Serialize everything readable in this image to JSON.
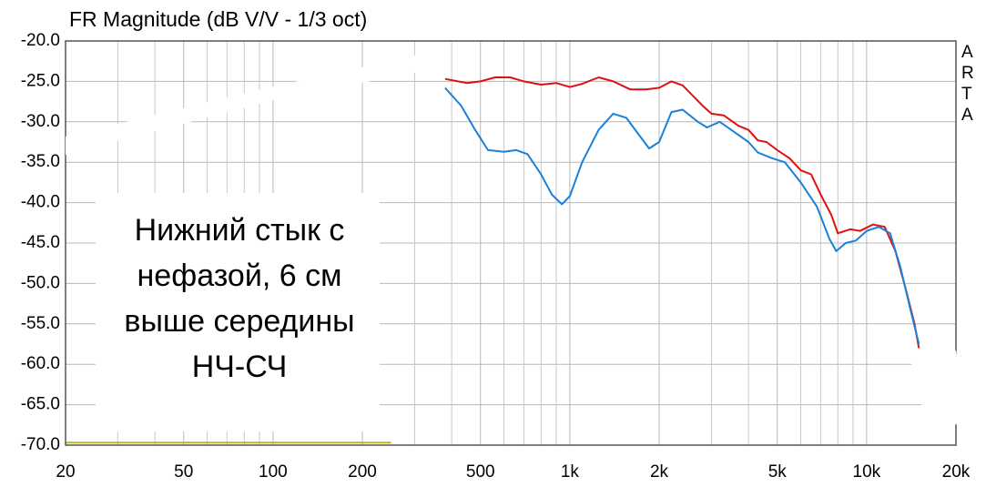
{
  "chart_data": {
    "type": "line",
    "title": "FR Magnitude (dB V/V - 1/3 oct)",
    "watermark": "ARTA",
    "annotation": [
      "Нижний стык с",
      "нефазой, 6 см",
      "выше середины",
      "НЧ-СЧ"
    ],
    "xscale": "log",
    "xlim": [
      20,
      20000
    ],
    "ylim": [
      -70,
      -20
    ],
    "grid": true,
    "xticks": [
      20,
      50,
      100,
      200,
      500,
      {
        "value": 1000,
        "label": "1k"
      },
      {
        "value": 2000,
        "label": "2k"
      },
      {
        "value": 5000,
        "label": "5k"
      },
      {
        "value": 10000,
        "label": "10k"
      },
      {
        "value": 20000,
        "label": "20k"
      }
    ],
    "x_minor_ticks": [
      30,
      40,
      60,
      70,
      80,
      90,
      300,
      400,
      600,
      700,
      800,
      900,
      3000,
      4000,
      6000,
      7000,
      8000,
      9000
    ],
    "yticks": [
      {
        "value": -20,
        "label": "-20.0"
      },
      {
        "value": -25,
        "label": "-25.0"
      },
      {
        "value": -30,
        "label": "-30.0"
      },
      {
        "value": -35,
        "label": "-35.0"
      },
      {
        "value": -40,
        "label": "-40.0"
      },
      {
        "value": -45,
        "label": "-45.0"
      },
      {
        "value": -50,
        "label": "-50.0"
      },
      {
        "value": -55,
        "label": "-55.0"
      },
      {
        "value": -60,
        "label": "-60.0"
      },
      {
        "value": -65,
        "label": "-65.0"
      },
      {
        "value": -70,
        "label": "-70.0"
      }
    ],
    "series": [
      {
        "color": "#e01010",
        "x": [
          380,
          450,
          500,
          560,
          630,
          700,
          800,
          900,
          1000,
          1100,
          1250,
          1400,
          1600,
          1800,
          2000,
          2200,
          2400,
          2800,
          3000,
          3300,
          3700,
          4000,
          4300,
          4600,
          5000,
          5500,
          6000,
          6500,
          7000,
          7600,
          8000,
          8800,
          9500,
          10500,
          11500,
          12500,
          13500,
          14500,
          15000
        ],
        "values": [
          -24.7,
          -25.2,
          -25.0,
          -24.5,
          -24.5,
          -25.0,
          -25.4,
          -25.2,
          -25.7,
          -25.3,
          -24.5,
          -25.0,
          -26.0,
          -26.0,
          -25.8,
          -25.0,
          -25.5,
          -28.0,
          -29.0,
          -29.2,
          -30.5,
          -31.0,
          -32.3,
          -32.5,
          -33.5,
          -34.5,
          -36.0,
          -36.5,
          -39.0,
          -41.5,
          -43.8,
          -43.3,
          -43.5,
          -42.7,
          -43.0,
          -46.0,
          -50.5,
          -55.0,
          -58.0
        ]
      },
      {
        "color": "#1a80d8",
        "x": [
          380,
          430,
          480,
          530,
          600,
          660,
          720,
          800,
          870,
          940,
          1000,
          1100,
          1250,
          1400,
          1550,
          1700,
          1850,
          2000,
          2200,
          2400,
          2700,
          2900,
          3200,
          3500,
          4000,
          4300,
          4800,
          5300,
          6000,
          6800,
          7500,
          7900,
          8500,
          9200,
          10000,
          11000,
          12000,
          13000,
          14000,
          15000
        ],
        "values": [
          -25.8,
          -28.0,
          -31.0,
          -33.5,
          -33.7,
          -33.5,
          -34.0,
          -36.5,
          -39.0,
          -40.2,
          -39.2,
          -35.0,
          -31.0,
          -29.0,
          -29.5,
          -31.5,
          -33.3,
          -32.5,
          -28.8,
          -28.5,
          -30.0,
          -30.7,
          -30.0,
          -31.0,
          -32.5,
          -33.8,
          -34.5,
          -35.0,
          -37.5,
          -40.5,
          -44.5,
          -46.0,
          -45.0,
          -44.7,
          -43.5,
          -43.0,
          -43.8,
          -48.0,
          -53.0,
          -57.5
        ]
      },
      {
        "color": "#b8b820",
        "x": [
          20,
          250
        ],
        "values": [
          -69.7,
          -69.7
        ]
      }
    ]
  }
}
